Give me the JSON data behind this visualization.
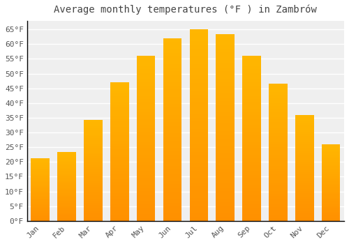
{
  "title": "Average monthly temperatures (°F ) in Zambrów",
  "months": [
    "Jan",
    "Feb",
    "Mar",
    "Apr",
    "May",
    "Jun",
    "Jul",
    "Aug",
    "Sep",
    "Oct",
    "Nov",
    "Dec"
  ],
  "values": [
    21.2,
    23.5,
    34.2,
    47.0,
    56.0,
    62.0,
    65.0,
    63.5,
    56.0,
    46.5,
    36.0,
    26.0
  ],
  "bar_color_top": "#FFB700",
  "bar_color_bottom": "#FF9000",
  "background_color": "#FFFFFF",
  "plot_bg_color": "#EFEFEF",
  "grid_color": "#FFFFFF",
  "ylim": [
    0,
    68
  ],
  "yticks": [
    0,
    5,
    10,
    15,
    20,
    25,
    30,
    35,
    40,
    45,
    50,
    55,
    60,
    65
  ],
  "title_fontsize": 10,
  "tick_fontsize": 8,
  "title_color": "#444444",
  "tick_color": "#555555",
  "spine_color": "#000000"
}
